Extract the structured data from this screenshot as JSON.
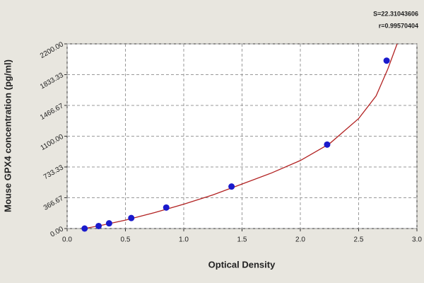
{
  "chart_data": {
    "type": "scatter",
    "xlabel": "Optical Density",
    "ylabel": "Mouse GPX4 concentration (pg/ml)",
    "annotations": [
      "S=22.31043606",
      "r=0.99570404"
    ],
    "xlim": [
      0,
      3
    ],
    "ylim": [
      0,
      2200
    ],
    "xticks": [
      {
        "value": 0,
        "label": "0.0"
      },
      {
        "value": 0.5,
        "label": "0.5"
      },
      {
        "value": 1,
        "label": "1.0"
      },
      {
        "value": 1.5,
        "label": "1.5"
      },
      {
        "value": 2,
        "label": "2.0"
      },
      {
        "value": 2.5,
        "label": "2.5"
      },
      {
        "value": 3,
        "label": "3.0"
      }
    ],
    "yticks": [
      {
        "value": 0,
        "label": "0.00"
      },
      {
        "value": 366.67,
        "label": "366.67"
      },
      {
        "value": 733.33,
        "label": "733.33"
      },
      {
        "value": 1100,
        "label": "1100.00"
      },
      {
        "value": 1466.67,
        "label": "1466.67"
      },
      {
        "value": 1833.33,
        "label": "1833.33"
      },
      {
        "value": 2200,
        "label": "2200.00"
      }
    ],
    "grid": true,
    "series": [
      {
        "type": "line",
        "color": "#b22222",
        "x": [
          0.15,
          0.3,
          0.5,
          0.75,
          1.0,
          1.25,
          1.5,
          1.75,
          2.0,
          2.25,
          2.5,
          2.65,
          2.75,
          2.83
        ],
        "values": [
          0,
          40,
          100,
          190,
          290,
          400,
          530,
          660,
          810,
          1010,
          1310,
          1580,
          1900,
          2200
        ]
      },
      {
        "type": "scatter",
        "color": "#1a1acc",
        "x": [
          0.15,
          0.27,
          0.36,
          0.55,
          0.85,
          1.41,
          2.23,
          2.74
        ],
        "values": [
          0,
          30,
          62,
          125,
          250,
          500,
          1000,
          2000
        ]
      }
    ]
  }
}
